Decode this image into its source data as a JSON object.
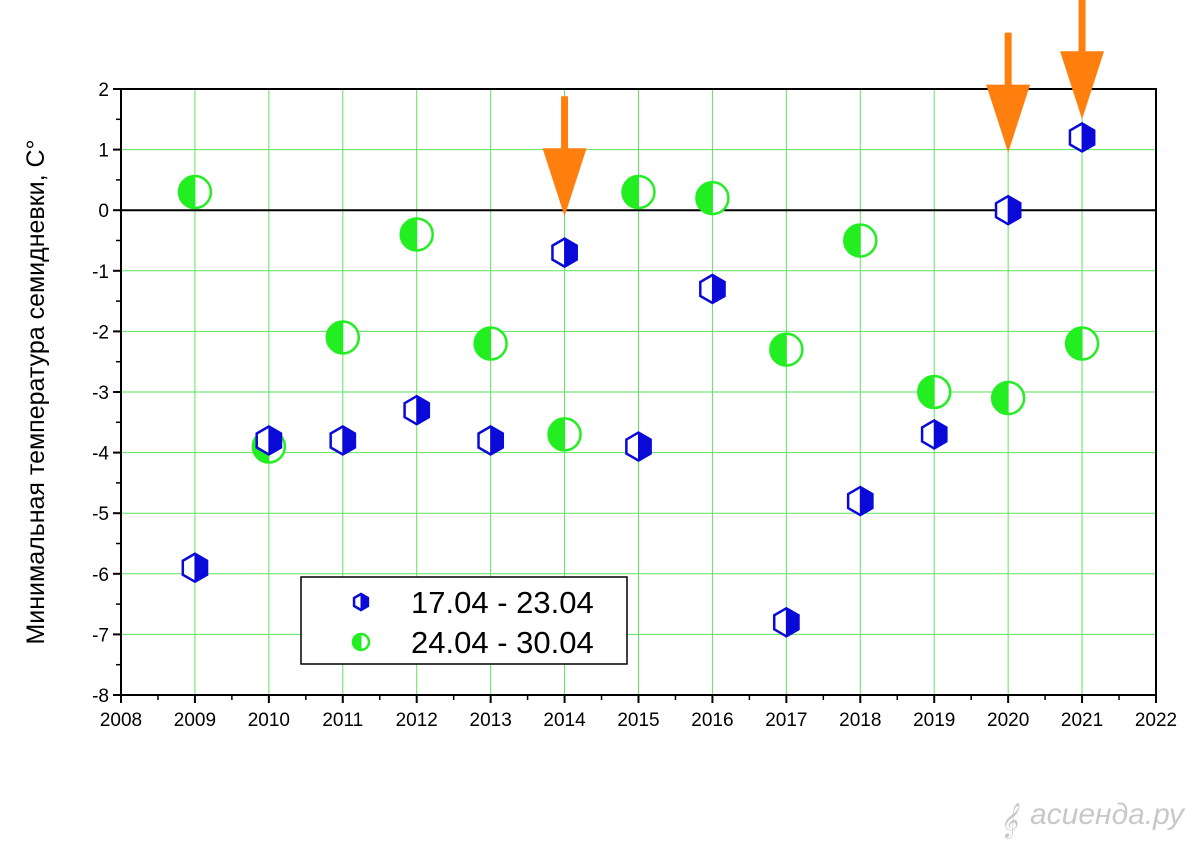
{
  "chart_data": {
    "type": "scatter",
    "ylabel": "Минимальная температура семидневки, С°",
    "xlabel": "",
    "xlim": [
      2008,
      2022
    ],
    "ylim": [
      -8,
      2
    ],
    "x_ticks": [
      2008,
      2009,
      2010,
      2011,
      2012,
      2013,
      2014,
      2015,
      2016,
      2017,
      2018,
      2019,
      2020,
      2021,
      2022
    ],
    "y_ticks": [
      -8,
      -7,
      -6,
      -5,
      -4,
      -3,
      -2,
      -1,
      0,
      1,
      2
    ],
    "grid": true,
    "grid_color": "#5ee35e",
    "zero_line": true,
    "legend_position": "bottom-left",
    "series": [
      {
        "name": "17.04 - 23.04",
        "marker": "half-filled-hexagon",
        "color": "#0a0ad8",
        "x": [
          2009,
          2010,
          2011,
          2012,
          2013,
          2014,
          2015,
          2016,
          2017,
          2018,
          2019,
          2020,
          2021
        ],
        "y": [
          -5.9,
          -3.8,
          -3.8,
          -3.3,
          -3.8,
          -0.7,
          -3.9,
          -1.3,
          -6.8,
          -4.8,
          -3.7,
          0.0,
          1.2
        ]
      },
      {
        "name": "24.04 - 30.04",
        "marker": "half-filled-circle",
        "color": "#22ee22",
        "x": [
          2009,
          2010,
          2011,
          2012,
          2013,
          2014,
          2015,
          2016,
          2017,
          2018,
          2019,
          2020,
          2021
        ],
        "y": [
          0.3,
          -3.9,
          -2.1,
          -0.4,
          -2.2,
          -3.7,
          0.3,
          0.2,
          -2.3,
          -0.5,
          -3.0,
          -3.1,
          -2.2
        ]
      }
    ],
    "annotations": [
      {
        "type": "arrow-down",
        "color": "#ff7f0e",
        "x": 2014,
        "y": -0.1
      },
      {
        "type": "arrow-down",
        "color": "#ff7f0e",
        "x": 2020,
        "y": 0.95
      },
      {
        "type": "arrow-down",
        "color": "#ff7f0e",
        "x": 2021,
        "y": 1.5
      }
    ]
  },
  "watermark": {
    "text": "асиенда.ру",
    "icon": "treble-clef-icon"
  }
}
